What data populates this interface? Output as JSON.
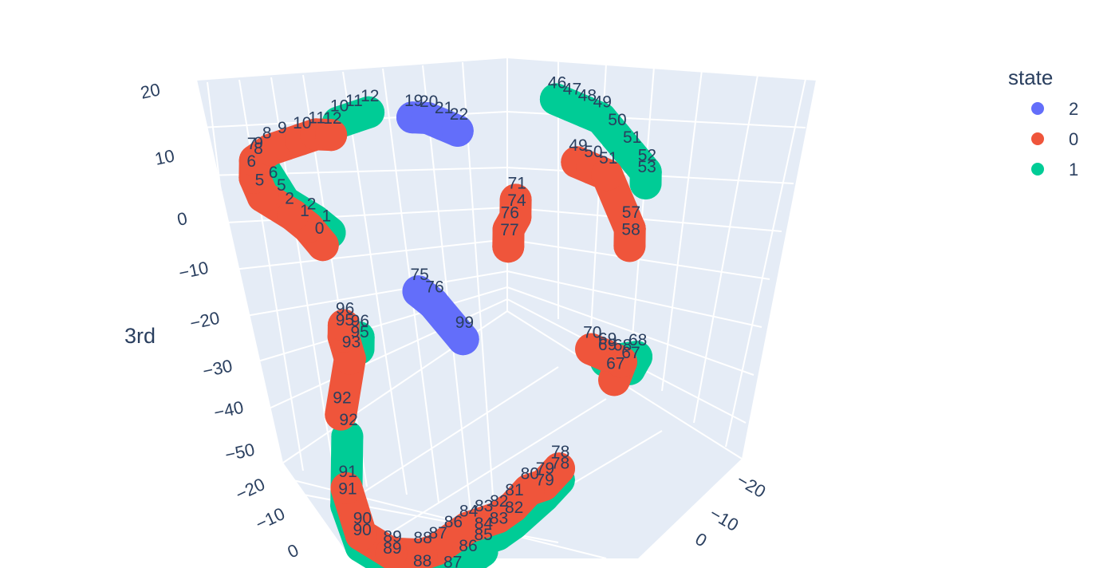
{
  "chart_data": {
    "type": "scatter3d",
    "title": "",
    "axes": {
      "z": {
        "title": "3rd",
        "ticks": [
          "20",
          "10",
          "0",
          "−10",
          "−20",
          "−30",
          "−40",
          "−50"
        ]
      },
      "x": {
        "title": "",
        "ticks": [
          "−20",
          "−10",
          "0"
        ]
      },
      "y": {
        "title": "",
        "ticks": [
          "−20",
          "−10",
          "0"
        ]
      }
    },
    "legend": {
      "title": "state",
      "placement": "top-right",
      "items": [
        {
          "name": "2",
          "color": "#636efa"
        },
        {
          "name": "0",
          "color": "#ef553b"
        },
        {
          "name": "1",
          "color": "#00cc96"
        }
      ]
    },
    "background_color": "#e5ecf6",
    "grid": true,
    "series": [
      {
        "name": "0",
        "color": "#ef553b",
        "points": [
          {
            "label": "0",
            "x": -12,
            "y": -14,
            "z": -2
          },
          {
            "label": "1",
            "x": -13,
            "y": -15,
            "z": 1
          },
          {
            "label": "2",
            "x": -14,
            "y": -16,
            "z": 3
          },
          {
            "label": "5",
            "x": -16,
            "y": -18,
            "z": 6
          },
          {
            "label": "6",
            "x": -17,
            "y": -18,
            "z": 9
          },
          {
            "label": "7",
            "x": -17,
            "y": -18,
            "z": 12
          },
          {
            "label": "8",
            "x": -16,
            "y": -17,
            "z": 14
          },
          {
            "label": "9",
            "x": -15,
            "y": -16,
            "z": 15
          },
          {
            "label": "10",
            "x": -14,
            "y": -15,
            "z": 16
          },
          {
            "label": "11",
            "x": -13,
            "y": -14,
            "z": 17
          },
          {
            "label": "12",
            "x": -12,
            "y": -13,
            "z": 17
          },
          {
            "label": "49",
            "x": 2,
            "y": 6,
            "z": 13
          },
          {
            "label": "50",
            "x": 3,
            "y": 7,
            "z": 12
          },
          {
            "label": "51",
            "x": 4,
            "y": 8,
            "z": 11
          },
          {
            "label": "57",
            "x": 6,
            "y": 9,
            "z": 2
          },
          {
            "label": "58",
            "x": 6,
            "y": 9,
            "z": -1
          },
          {
            "label": "67",
            "x": 6,
            "y": 7,
            "z": -24
          },
          {
            "label": "68",
            "x": 6,
            "y": 8,
            "z": -21
          },
          {
            "label": "69",
            "x": 5,
            "y": 7,
            "z": -20
          },
          {
            "label": "70",
            "x": 4,
            "y": 6,
            "z": -19
          },
          {
            "label": "71",
            "x": -2,
            "y": 2,
            "z": 6
          },
          {
            "label": "74",
            "x": -2,
            "y": 2,
            "z": 3
          },
          {
            "label": "76",
            "x": -2,
            "y": 1,
            "z": 1
          },
          {
            "label": "77",
            "x": -2,
            "y": 1,
            "z": -2
          },
          {
            "label": "78",
            "x": 2,
            "y": 4,
            "z": -40
          },
          {
            "label": "79",
            "x": 1,
            "y": 3,
            "z": -43
          },
          {
            "label": "80",
            "x": 0,
            "y": 2,
            "z": -44
          },
          {
            "label": "81",
            "x": -1,
            "y": 1,
            "z": -47
          },
          {
            "label": "82",
            "x": -2,
            "y": 0,
            "z": -49
          },
          {
            "label": "83",
            "x": -3,
            "y": -1,
            "z": -50
          },
          {
            "label": "84",
            "x": -4,
            "y": -2,
            "z": -51
          },
          {
            "label": "86",
            "x": -5,
            "y": -3,
            "z": -53
          },
          {
            "label": "87",
            "x": -6,
            "y": -4,
            "z": -55
          },
          {
            "label": "88",
            "x": -7,
            "y": -5,
            "z": -56
          },
          {
            "label": "89",
            "x": -9,
            "y": -7,
            "z": -56
          },
          {
            "label": "90",
            "x": -11,
            "y": -9,
            "z": -53
          },
          {
            "label": "91",
            "x": -12,
            "y": -10,
            "z": -45
          },
          {
            "label": "92",
            "x": -12,
            "y": -11,
            "z": -32
          },
          {
            "label": "93",
            "x": -11,
            "y": -11,
            "z": -22
          },
          {
            "label": "95",
            "x": -11,
            "y": -12,
            "z": -18
          },
          {
            "label": "96",
            "x": -11,
            "y": -12,
            "z": -16
          }
        ]
      },
      {
        "name": "1",
        "color": "#00cc96",
        "points": [
          {
            "label": "1",
            "x": -12,
            "y": -13,
            "z": 0
          },
          {
            "label": "2",
            "x": -13,
            "y": -14,
            "z": 2
          },
          {
            "label": "5",
            "x": -15,
            "y": -16,
            "z": 5
          },
          {
            "label": "6",
            "x": -16,
            "y": -16,
            "z": 7
          },
          {
            "label": "8",
            "x": -17,
            "y": -17,
            "z": 11
          },
          {
            "label": "9",
            "x": -17,
            "y": -17,
            "z": 12
          },
          {
            "label": "10",
            "x": -12,
            "y": -12,
            "z": 19
          },
          {
            "label": "11",
            "x": -11,
            "y": -11,
            "z": 20
          },
          {
            "label": "12",
            "x": -10,
            "y": -10,
            "z": 21
          },
          {
            "label": "46",
            "x": 1,
            "y": 4,
            "z": 24
          },
          {
            "label": "47",
            "x": 2,
            "y": 5,
            "z": 23
          },
          {
            "label": "48",
            "x": 3,
            "y": 6,
            "z": 22
          },
          {
            "label": "49",
            "x": 4,
            "y": 7,
            "z": 21
          },
          {
            "label": "50",
            "x": 5,
            "y": 8,
            "z": 18
          },
          {
            "label": "51",
            "x": 6,
            "y": 9,
            "z": 15
          },
          {
            "label": "52",
            "x": 7,
            "y": 10,
            "z": 12
          },
          {
            "label": "53",
            "x": 7,
            "y": 10,
            "z": 10
          },
          {
            "label": "67",
            "x": 7,
            "y": 8,
            "z": -22
          },
          {
            "label": "68",
            "x": 7,
            "y": 9,
            "z": -20
          },
          {
            "label": "69",
            "x": 5,
            "y": 7,
            "z": -21
          },
          {
            "label": "78",
            "x": 2,
            "y": 4,
            "z": -42
          },
          {
            "label": "79",
            "x": 1,
            "y": 3,
            "z": -45
          },
          {
            "label": "82",
            "x": -1,
            "y": 1,
            "z": -50
          },
          {
            "label": "83",
            "x": -2,
            "y": 0,
            "z": -52
          },
          {
            "label": "84",
            "x": -3,
            "y": -1,
            "z": -53
          },
          {
            "label": "85",
            "x": -3,
            "y": -1,
            "z": -55
          },
          {
            "label": "86",
            "x": -4,
            "y": -2,
            "z": -57
          },
          {
            "label": "87",
            "x": -5,
            "y": -3,
            "z": -60
          },
          {
            "label": "88",
            "x": -7,
            "y": -5,
            "z": -60
          },
          {
            "label": "89",
            "x": -9,
            "y": -7,
            "z": -58
          },
          {
            "label": "90",
            "x": -11,
            "y": -9,
            "z": -55
          },
          {
            "label": "91",
            "x": -12,
            "y": -10,
            "z": -48
          },
          {
            "label": "92",
            "x": -12,
            "y": -10,
            "z": -36
          },
          {
            "label": "95",
            "x": -10,
            "y": -11,
            "z": -20
          },
          {
            "label": "96",
            "x": -10,
            "y": -11,
            "z": -18
          }
        ]
      },
      {
        "name": "2",
        "color": "#636efa",
        "points": [
          {
            "label": "19",
            "x": -8,
            "y": -6,
            "z": 20
          },
          {
            "label": "20",
            "x": -7,
            "y": -5,
            "z": 20
          },
          {
            "label": "21",
            "x": -6,
            "y": -4,
            "z": 19
          },
          {
            "label": "22",
            "x": -5,
            "y": -3,
            "z": 18
          },
          {
            "label": "75",
            "x": -7,
            "y": -6,
            "z": -10
          },
          {
            "label": "76",
            "x": -6,
            "y": -5,
            "z": -12
          },
          {
            "label": "99",
            "x": -4,
            "y": -3,
            "z": -18
          }
        ]
      }
    ]
  }
}
